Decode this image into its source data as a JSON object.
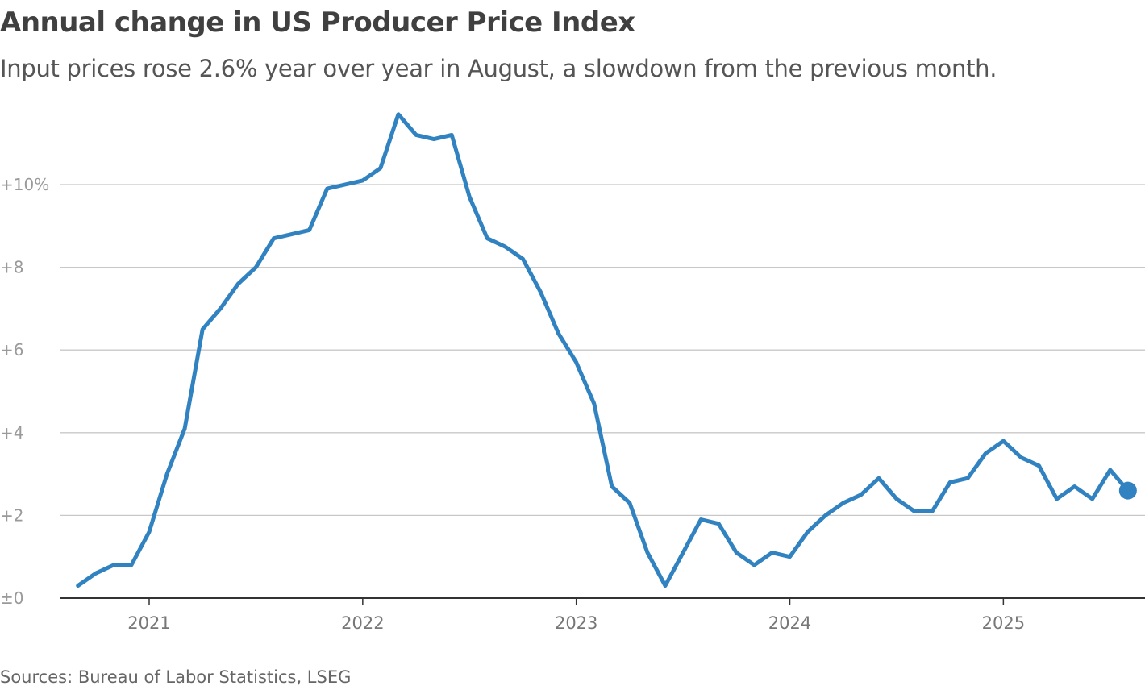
{
  "chart_data": {
    "type": "line",
    "title": "Annual change in US Producer Price Index",
    "subtitle": "Input prices rose 2.6% year over year in August, a slowdown from the previous month.",
    "source": "Sources: Bureau of Labor Statistics, LSEG",
    "xlabel": "",
    "ylabel": "",
    "ylim": [
      0,
      11.8
    ],
    "grid": true,
    "y_ticks": [
      {
        "value": 0,
        "label": "±0"
      },
      {
        "value": 2,
        "label": "+2"
      },
      {
        "value": 4,
        "label": "+4"
      },
      {
        "value": 6,
        "label": "+6"
      },
      {
        "value": 8,
        "label": "+8"
      },
      {
        "value": 10,
        "label": "+10%"
      }
    ],
    "x_ticks": [
      {
        "value": "2021-01",
        "label": "2021"
      },
      {
        "value": "2022-01",
        "label": "2022"
      },
      {
        "value": "2023-01",
        "label": "2023"
      },
      {
        "value": "2024-01",
        "label": "2024"
      },
      {
        "value": "2025-01",
        "label": "2025"
      }
    ],
    "line_color": "#3182c0",
    "highlight_last_point": true,
    "series": [
      {
        "x": [
          "2020-09",
          "2020-10",
          "2020-11",
          "2020-12",
          "2021-01",
          "2021-02",
          "2021-03",
          "2021-04",
          "2021-05",
          "2021-06",
          "2021-07",
          "2021-08",
          "2021-09",
          "2021-10",
          "2021-11",
          "2021-12",
          "2022-01",
          "2022-02",
          "2022-03",
          "2022-04",
          "2022-05",
          "2022-06",
          "2022-07",
          "2022-08",
          "2022-09",
          "2022-10",
          "2022-11",
          "2022-12",
          "2023-01",
          "2023-02",
          "2023-03",
          "2023-04",
          "2023-05",
          "2023-06",
          "2023-07",
          "2023-08",
          "2023-09",
          "2023-10",
          "2023-11",
          "2023-12",
          "2024-01",
          "2024-02",
          "2024-03",
          "2024-04",
          "2024-05",
          "2024-06",
          "2024-07",
          "2024-08",
          "2024-09",
          "2024-10",
          "2024-11",
          "2024-12",
          "2025-01",
          "2025-02",
          "2025-03",
          "2025-04",
          "2025-05",
          "2025-06",
          "2025-07",
          "2025-08"
        ],
        "values": [
          0.3,
          0.6,
          0.8,
          0.8,
          1.6,
          3.0,
          4.1,
          6.5,
          7.0,
          7.6,
          8.0,
          8.7,
          8.8,
          8.9,
          9.9,
          10.0,
          10.1,
          10.4,
          11.7,
          11.2,
          11.1,
          11.2,
          9.7,
          8.7,
          8.5,
          8.2,
          7.4,
          6.4,
          5.7,
          4.7,
          2.7,
          2.3,
          1.1,
          0.3,
          1.1,
          1.9,
          1.8,
          1.1,
          0.8,
          1.1,
          1.0,
          1.6,
          2.0,
          2.3,
          2.5,
          2.9,
          2.4,
          2.1,
          2.1,
          2.8,
          2.9,
          3.5,
          3.8,
          3.4,
          3.2,
          2.4,
          2.7,
          2.4,
          3.1,
          2.6
        ]
      }
    ]
  }
}
